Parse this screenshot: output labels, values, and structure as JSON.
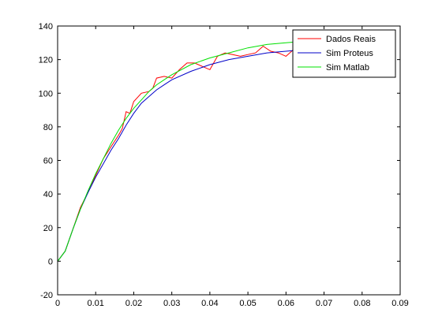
{
  "chart_data": {
    "type": "line",
    "title": "",
    "xlabel": "",
    "ylabel": "",
    "xlim": [
      0,
      0.09
    ],
    "ylim": [
      -20,
      140
    ],
    "x_ticks": [
      "0",
      "0.01",
      "0.02",
      "0.03",
      "0.04",
      "0.05",
      "0.06",
      "0.07",
      "0.08",
      "0.09"
    ],
    "y_ticks": [
      "-20",
      "0",
      "20",
      "40",
      "60",
      "80",
      "100",
      "120",
      "140"
    ],
    "grid": false,
    "legend": "top-right",
    "series": [
      {
        "name": "Dados Reais",
        "color": "#ff0000",
        "x": [
          0,
          0.002,
          0.004,
          0.006,
          0.008,
          0.01,
          0.012,
          0.014,
          0.016,
          0.017,
          0.018,
          0.019,
          0.02,
          0.022,
          0.024,
          0.025,
          0.026,
          0.028,
          0.03,
          0.032,
          0.034,
          0.036,
          0.038,
          0.04,
          0.042,
          0.044,
          0.046,
          0.048,
          0.05,
          0.052,
          0.054,
          0.056,
          0.058,
          0.06,
          0.062,
          0.064
        ],
        "y": [
          0,
          6,
          19,
          32,
          41,
          51,
          61,
          68,
          75,
          79,
          89,
          88,
          95,
          100,
          101,
          103,
          109,
          110,
          109,
          114,
          118,
          118,
          116,
          114,
          122,
          124,
          123,
          122,
          123,
          124,
          128,
          125,
          124,
          122,
          126,
          128
        ]
      },
      {
        "name": "Sim Proteus",
        "color": "#0000c8",
        "x": [
          0,
          0.002,
          0.004,
          0.006,
          0.008,
          0.01,
          0.012,
          0.014,
          0.016,
          0.018,
          0.02,
          0.022,
          0.024,
          0.026,
          0.028,
          0.03,
          0.035,
          0.04,
          0.045,
          0.05,
          0.055,
          0.06,
          0.065,
          0.07
        ],
        "y": [
          0,
          6,
          19,
          31,
          41,
          50,
          58,
          66,
          73,
          81,
          88,
          94,
          98,
          102,
          105,
          108,
          113,
          117,
          120,
          122,
          124,
          125,
          126,
          127
        ]
      },
      {
        "name": "Sim Matlab",
        "color": "#00e000",
        "x": [
          0,
          0.002,
          0.004,
          0.006,
          0.008,
          0.01,
          0.012,
          0.014,
          0.016,
          0.018,
          0.02,
          0.022,
          0.024,
          0.026,
          0.028,
          0.03,
          0.035,
          0.04,
          0.045,
          0.05,
          0.055,
          0.06,
          0.065,
          0.07
        ],
        "y": [
          0,
          6,
          19,
          31,
          42,
          52,
          61,
          70,
          78,
          85,
          91,
          96,
          101,
          105,
          108,
          111,
          117,
          121,
          124,
          127,
          129,
          130,
          131,
          132
        ]
      }
    ]
  }
}
